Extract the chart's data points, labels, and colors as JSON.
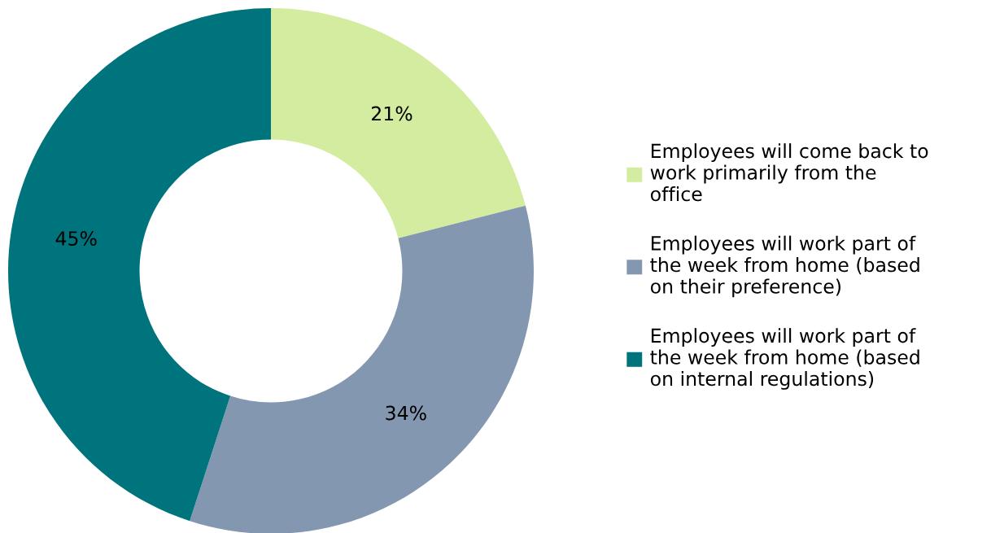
{
  "chart_data": {
    "type": "donut",
    "categories": [
      "Employees will come back to\nwork primarily from the\noffice",
      "Employees will work part of\nthe week from home (based\non their preference)",
      "Employees will work part of\nthe week from home (based\non internal regulations)"
    ],
    "values": [
      21,
      34,
      45
    ],
    "value_labels": [
      "21%",
      "34%",
      "45%"
    ],
    "colors": [
      "#d4eca0",
      "#8497b0",
      "#00747c"
    ],
    "legend": "right"
  }
}
